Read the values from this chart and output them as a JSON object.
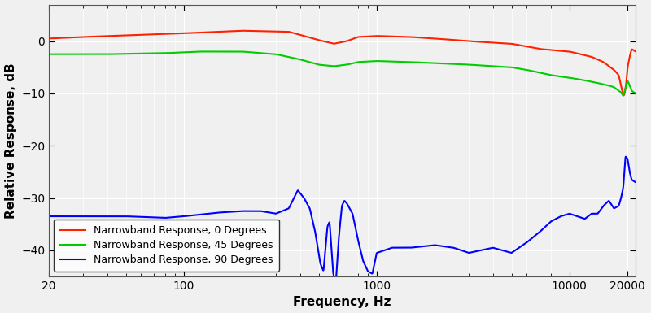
{
  "title": "",
  "xlabel": "Frequency, Hz",
  "ylabel": "Relative Response, dB",
  "xlim": [
    20,
    22000
  ],
  "ylim": [
    -45,
    7
  ],
  "yticks": [
    0,
    -10,
    -20,
    -30,
    -40
  ],
  "xticks": [
    20,
    100,
    1000,
    10000,
    20000
  ],
  "xtick_labels": [
    "20",
    "100",
    "1000",
    "10000",
    "20000"
  ],
  "background_color": "#f0f0f0",
  "plot_bg_color": "#f0f0f0",
  "grid_color": "#ffffff",
  "line_colors": {
    "0deg": "#ff2000",
    "45deg": "#00cc00",
    "90deg": "#0000ff"
  },
  "line_widths": {
    "0deg": 1.5,
    "45deg": 1.5,
    "90deg": 1.5
  },
  "legend_labels": [
    "Narrowband Response, 0 Degrees",
    "Narrowband Response, 45 Degrees",
    "Narrowband Response, 90 Degrees"
  ],
  "legend_loc": "lower left",
  "font_size": 11,
  "tick_font_size": 10
}
